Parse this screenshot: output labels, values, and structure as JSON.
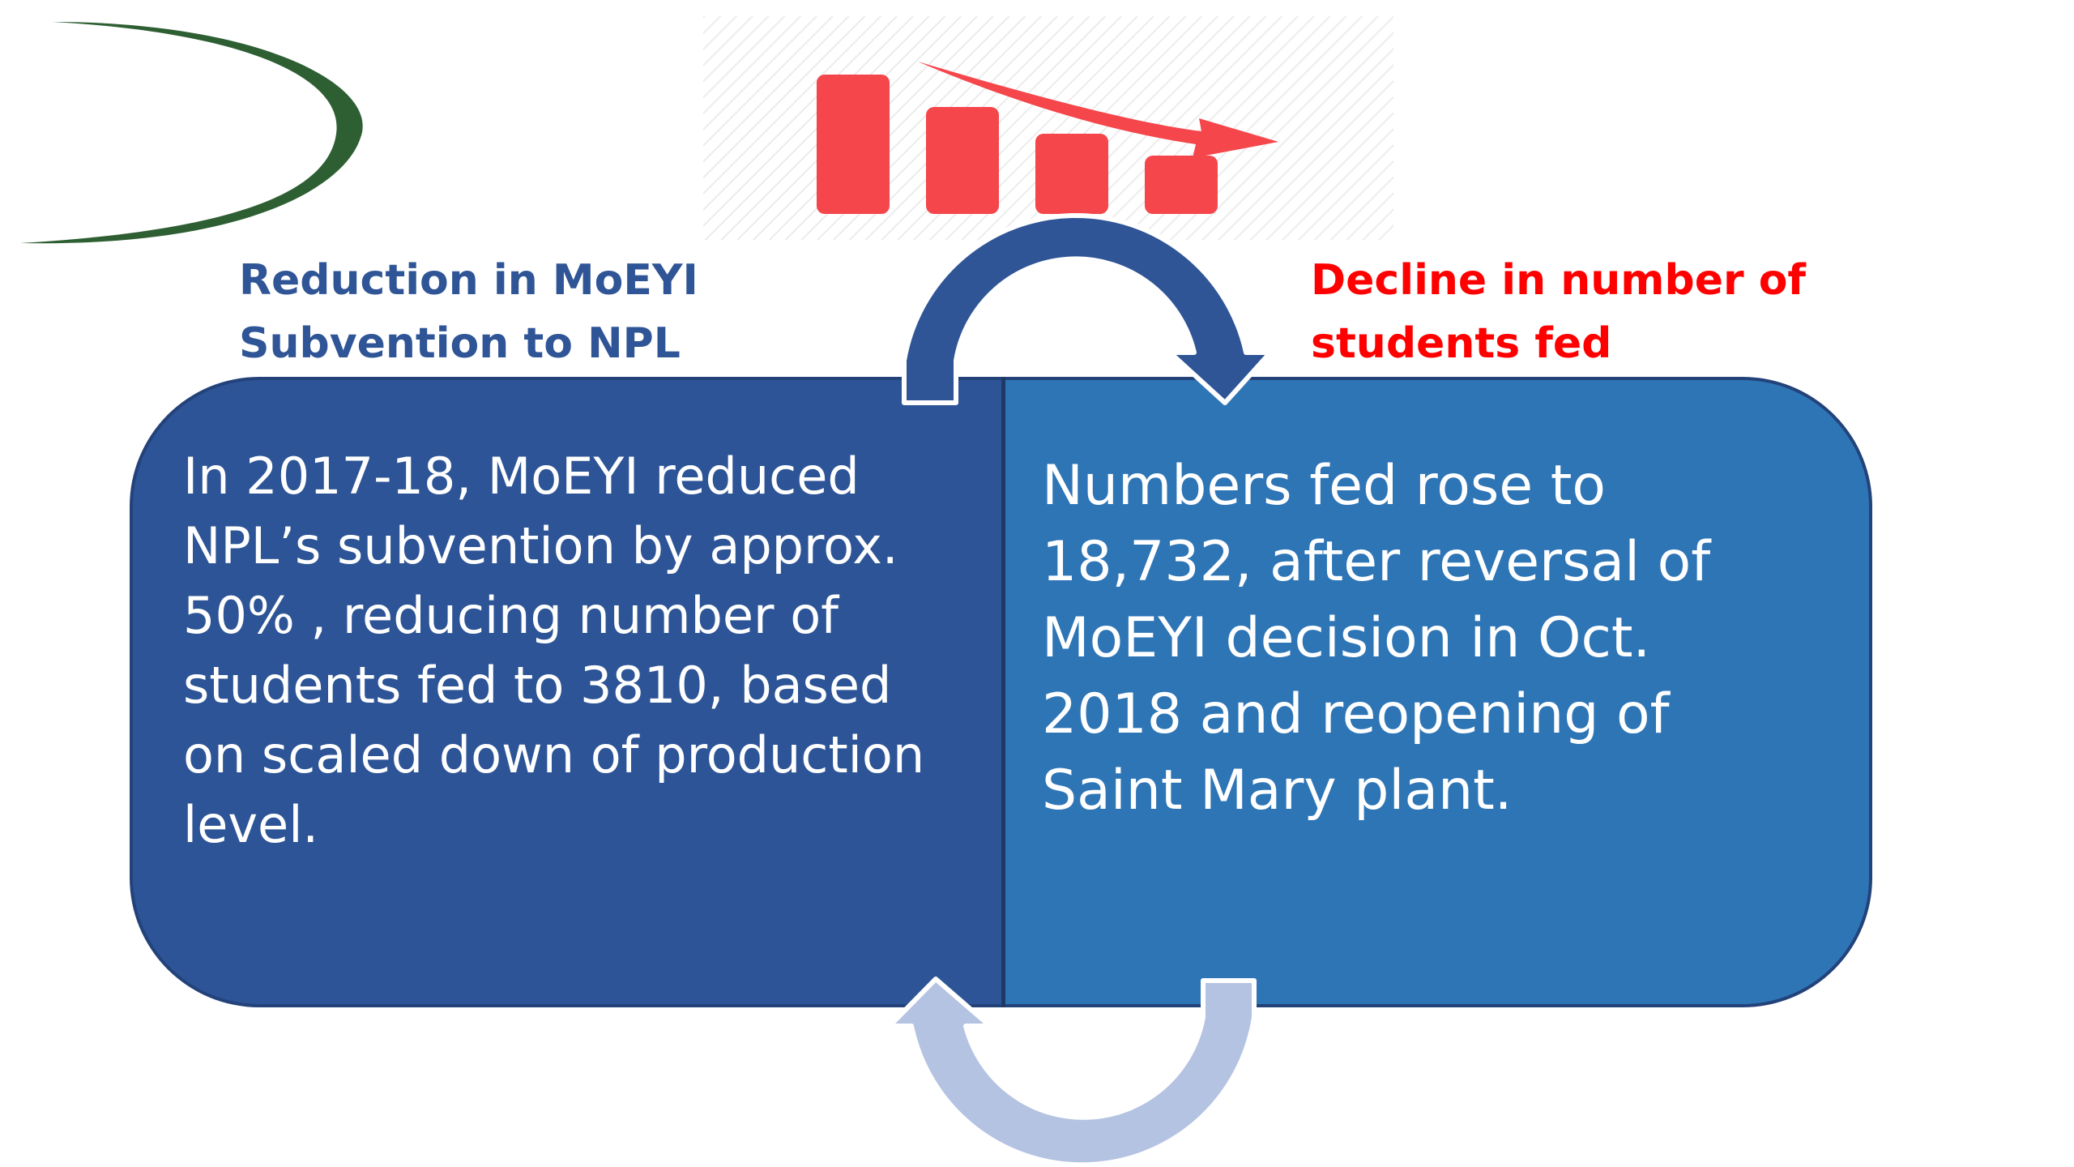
{
  "headings": {
    "left_line1": "Reduction in MoEYI",
    "left_line2": "Subvention to NPL",
    "right_line1": "Decline in number of",
    "right_line2": "students fed"
  },
  "boxes": {
    "left_lines": [
      "In 2017-18, MoEYI reduced",
      "NPL’s subvention by approx.",
      "50% , reducing number of",
      "students fed to 3810, based",
      "on scaled down of production",
      "level."
    ],
    "right_lines": [
      "Numbers fed rose to",
      "18,732, after reversal of",
      "MoEYI decision in Oct.",
      "2018 and reopening of",
      "Saint Mary plant."
    ]
  },
  "icons": {
    "top_left": "logo-arc-icon",
    "top_center": "declining-bar-chart-icon",
    "cycle_top": "curved-arrow-right-icon",
    "cycle_bottom": "curved-arrow-left-icon"
  },
  "colors": {
    "left_box": "#2d5496",
    "right_box": "#2e75b6",
    "left_heading": "#2f5597",
    "right_heading": "#ff0000",
    "top_arrow": "#2f5597",
    "bottom_arrow": "#b4c3e2",
    "chart_icon": "#f4464b",
    "logo_arc": "#2e5f33"
  }
}
